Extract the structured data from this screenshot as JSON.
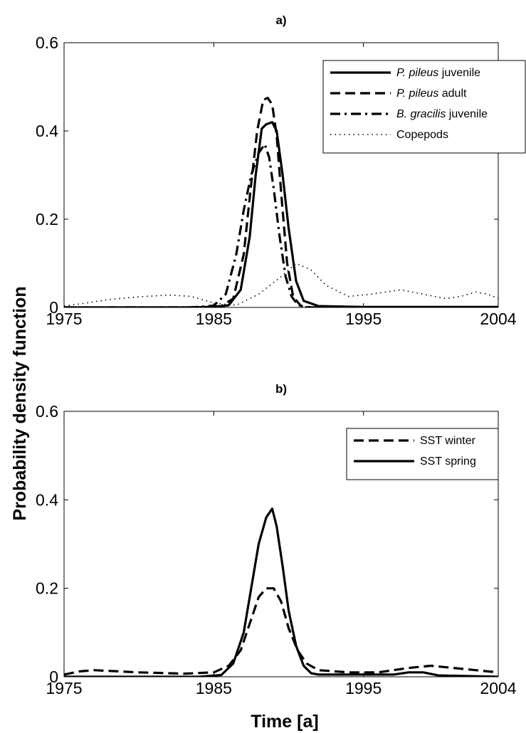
{
  "ylabel": "Probability density function",
  "xlabel": "Time [a]",
  "chart_data": [
    {
      "type": "line",
      "title": "a)",
      "xlim": [
        1975,
        2004
      ],
      "ylim": [
        0,
        0.6
      ],
      "xticks": [
        "1975",
        "1985",
        "1995",
        "2004"
      ],
      "yticks": [
        "0",
        "0.2",
        "0.4",
        "0.6"
      ],
      "legend_position": "top-right",
      "series": [
        {
          "legend": [
            {
              "text": "P. pileus",
              "italic": true
            },
            {
              "text": " juvenile",
              "italic": false
            }
          ],
          "style": "solid",
          "x": [
            1975,
            1980,
            1983,
            1985,
            1986,
            1986.8,
            1987.4,
            1987.8,
            1988.2,
            1988.5,
            1988.9,
            1989.2,
            1989.6,
            1990,
            1990.5,
            1991,
            1992,
            1995,
            2004
          ],
          "y": [
            0,
            0,
            0,
            0.001,
            0.005,
            0.04,
            0.16,
            0.3,
            0.405,
            0.415,
            0.42,
            0.4,
            0.3,
            0.18,
            0.06,
            0.015,
            0.003,
            0.001,
            0.001
          ]
        },
        {
          "legend": [
            {
              "text": "P. pileus",
              "italic": true
            },
            {
              "text": " adult",
              "italic": false
            }
          ],
          "style": "dashed",
          "x": [
            1975,
            1984,
            1985.5,
            1986.3,
            1987,
            1987.5,
            1987.9,
            1988.3,
            1988.6,
            1988.9,
            1989.2,
            1989.5,
            1989.9,
            1990.3,
            1990.8,
            1991.5,
            2004
          ],
          "y": [
            0,
            0,
            0.003,
            0.02,
            0.12,
            0.28,
            0.4,
            0.47,
            0.475,
            0.46,
            0.39,
            0.26,
            0.1,
            0.025,
            0.004,
            0,
            0
          ]
        },
        {
          "legend": [
            {
              "text": "B. gracilis",
              "italic": true
            },
            {
              "text": " juvenile",
              "italic": false
            }
          ],
          "style": "dashdot",
          "x": [
            1975,
            1983.5,
            1985,
            1985.8,
            1986.5,
            1987,
            1987.5,
            1988,
            1988.4,
            1988.7,
            1989,
            1989.4,
            1989.8,
            1990.2,
            1990.6,
            1991.2,
            2004
          ],
          "y": [
            0,
            0,
            0.004,
            0.03,
            0.12,
            0.22,
            0.3,
            0.35,
            0.37,
            0.34,
            0.27,
            0.16,
            0.07,
            0.025,
            0.006,
            0,
            0
          ]
        },
        {
          "legend": [
            {
              "text": "Copepods",
              "italic": false
            }
          ],
          "style": "dotted",
          "x": [
            1975,
            1976.5,
            1978,
            1980,
            1982,
            1983.5,
            1985,
            1986.5,
            1988,
            1989.5,
            1990.5,
            1991.5,
            1992.5,
            1994,
            1995.5,
            1996.5,
            1997.5,
            1999,
            2000.5,
            2001.5,
            2002.5,
            2003.3,
            2004
          ],
          "y": [
            0.003,
            0.01,
            0.018,
            0.024,
            0.028,
            0.025,
            0.01,
            0.005,
            0.03,
            0.07,
            0.1,
            0.085,
            0.05,
            0.025,
            0.03,
            0.035,
            0.04,
            0.03,
            0.02,
            0.025,
            0.035,
            0.03,
            0.02
          ]
        }
      ]
    },
    {
      "type": "line",
      "title": "b)",
      "xlim": [
        1975,
        2004
      ],
      "ylim": [
        0,
        0.6
      ],
      "xticks": [
        "1975",
        "1985",
        "1995",
        "2004"
      ],
      "yticks": [
        "0",
        "0.2",
        "0.4",
        "0.6"
      ],
      "legend_position": "top-right",
      "series": [
        {
          "legend": [
            {
              "text": "SST winter",
              "italic": false
            }
          ],
          "style": "dashed",
          "x": [
            1975,
            1976,
            1977,
            1980,
            1983,
            1985,
            1986,
            1986.8,
            1987.4,
            1988,
            1988.5,
            1989,
            1989.5,
            1990,
            1990.6,
            1991.2,
            1992,
            1994,
            1996,
            1998,
            1999.5,
            2001,
            2004
          ],
          "y": [
            0.005,
            0.012,
            0.015,
            0.01,
            0.007,
            0.01,
            0.025,
            0.06,
            0.12,
            0.18,
            0.2,
            0.2,
            0.17,
            0.11,
            0.06,
            0.03,
            0.015,
            0.01,
            0.01,
            0.02,
            0.025,
            0.02,
            0.01
          ]
        },
        {
          "legend": [
            {
              "text": "SST spring",
              "italic": false
            }
          ],
          "style": "solid",
          "x": [
            1975,
            1984,
            1985.5,
            1986.3,
            1987,
            1987.5,
            1988,
            1988.5,
            1988.9,
            1989.2,
            1989.6,
            1990,
            1990.5,
            1991,
            1991.5,
            1992,
            1995,
            1997,
            1998,
            1999,
            2000,
            2004
          ],
          "y": [
            0,
            0,
            0.004,
            0.03,
            0.1,
            0.2,
            0.3,
            0.36,
            0.38,
            0.34,
            0.25,
            0.15,
            0.07,
            0.025,
            0.008,
            0.005,
            0.005,
            0.005,
            0.01,
            0.01,
            0.003,
            0
          ]
        }
      ]
    }
  ]
}
